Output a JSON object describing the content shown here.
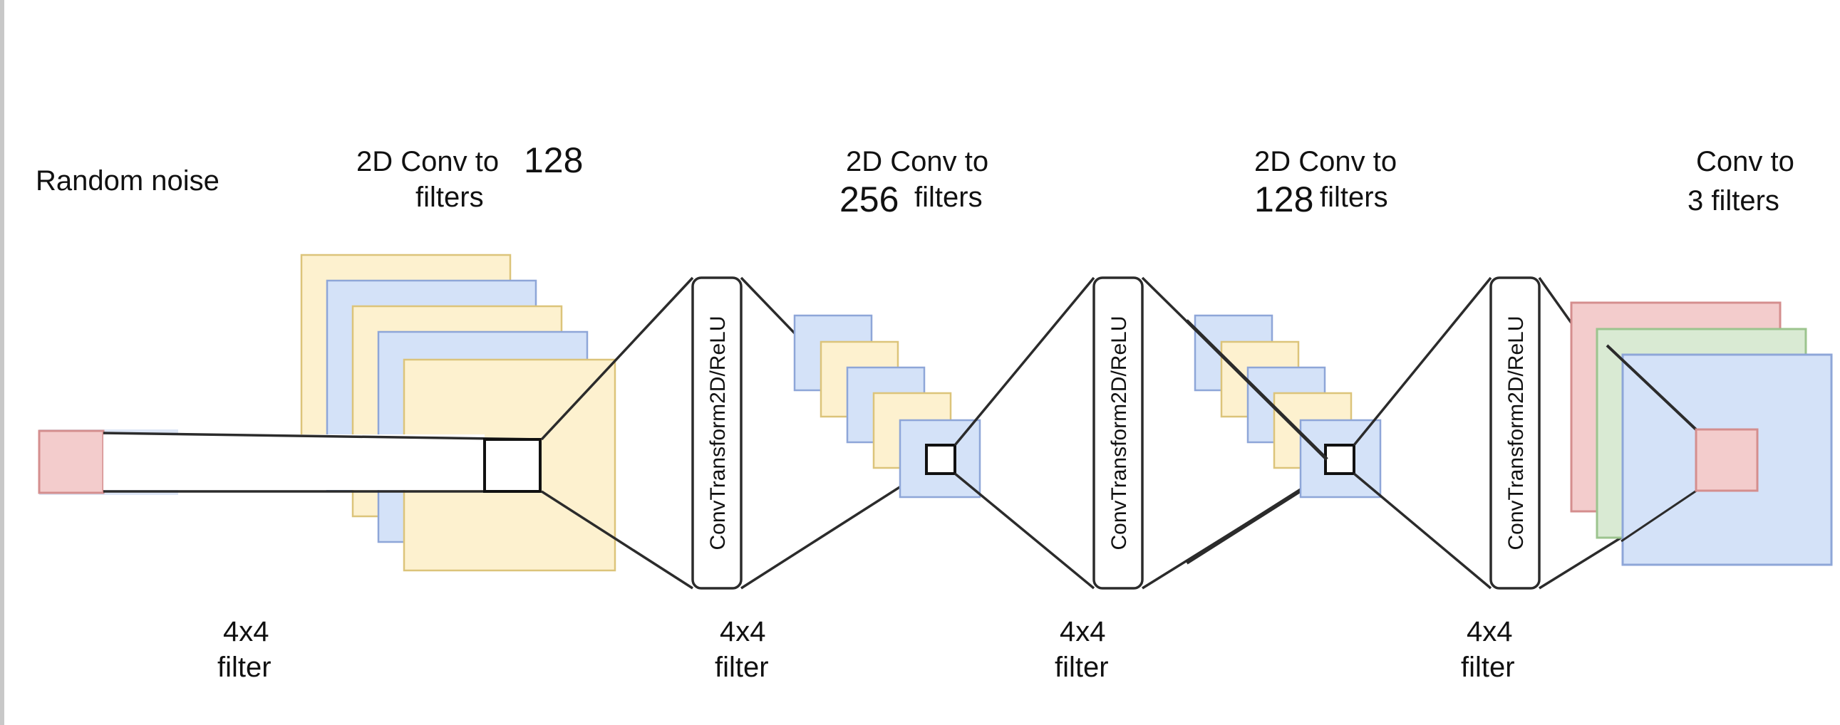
{
  "colors": {
    "yellow_fill": "#fdf1cf",
    "yellow_stroke": "#dcc47a",
    "blue_fill": "#d4e2f8",
    "blue_stroke": "#8ea6d8",
    "red_fill": "#f3cccc",
    "red_stroke": "#d48e8e",
    "green_fill": "#d9ead3",
    "green_stroke": "#9cc48e",
    "line": "#2b2b2b"
  },
  "input": {
    "label": "Random noise"
  },
  "stages": [
    {
      "title_line1": "2D Conv to",
      "title_num": "128",
      "title_line2": "filters"
    },
    {
      "title_line1": "2D Conv to",
      "title_num": "256",
      "title_line2": "filters"
    },
    {
      "title_line1": "2D Conv to",
      "title_num": "128",
      "title_line2": "filters"
    },
    {
      "title_line1": "Conv to",
      "title_line2": "3 filters"
    }
  ],
  "transform_blocks": [
    {
      "label": "ConvTransform2D/ReLU"
    },
    {
      "label": "ConvTransform2D/ReLU"
    },
    {
      "label": "ConvTransform2D/ReLU"
    }
  ],
  "filters": [
    {
      "line1": "4x4",
      "line2": "filter"
    },
    {
      "line1": "4x4",
      "line2": "filter"
    },
    {
      "line1": "4x4",
      "line2": "filter"
    },
    {
      "line1": "4x4",
      "line2": "filter"
    }
  ]
}
